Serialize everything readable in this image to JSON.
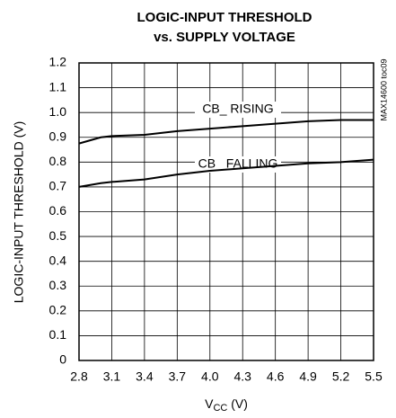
{
  "chart_data": {
    "type": "line",
    "title": [
      "LOGIC-INPUT THRESHOLD",
      "vs. SUPPLY VOLTAGE"
    ],
    "ylabel": "LOGIC-INPUT THRESHOLD (V)",
    "xlabel": [
      "V",
      "CC",
      " (V)"
    ],
    "x": [
      2.8,
      3.0,
      3.1,
      3.4,
      3.7,
      4.0,
      4.3,
      4.6,
      4.9,
      5.2,
      5.5
    ],
    "series": [
      {
        "name": "CB_ RISING",
        "color": "#000000",
        "values": [
          0.875,
          0.9,
          0.905,
          0.91,
          0.925,
          0.935,
          0.945,
          0.955,
          0.965,
          0.97,
          0.97
        ]
      },
      {
        "name": "CB_ FALLING",
        "color": "#000000",
        "values": [
          0.7,
          0.715,
          0.72,
          0.73,
          0.75,
          0.765,
          0.775,
          0.785,
          0.795,
          0.8,
          0.81
        ]
      }
    ],
    "xlim": [
      2.8,
      5.5
    ],
    "xticks": [
      2.8,
      3.1,
      3.4,
      3.7,
      {
        "value": 4,
        "label": "4.0"
      },
      4.3,
      4.6,
      4.9,
      5.2,
      5.5
    ],
    "ylim": [
      0,
      1.2
    ],
    "yticks": [
      0,
      0.1,
      0.2,
      0.3,
      0.4,
      0.5,
      0.6,
      0.7,
      0.8,
      0.9,
      {
        "value": 1,
        "label": "1.0"
      },
      1.1,
      1.2
    ],
    "grid": true,
    "annotation": "MAX14600 toc09"
  }
}
